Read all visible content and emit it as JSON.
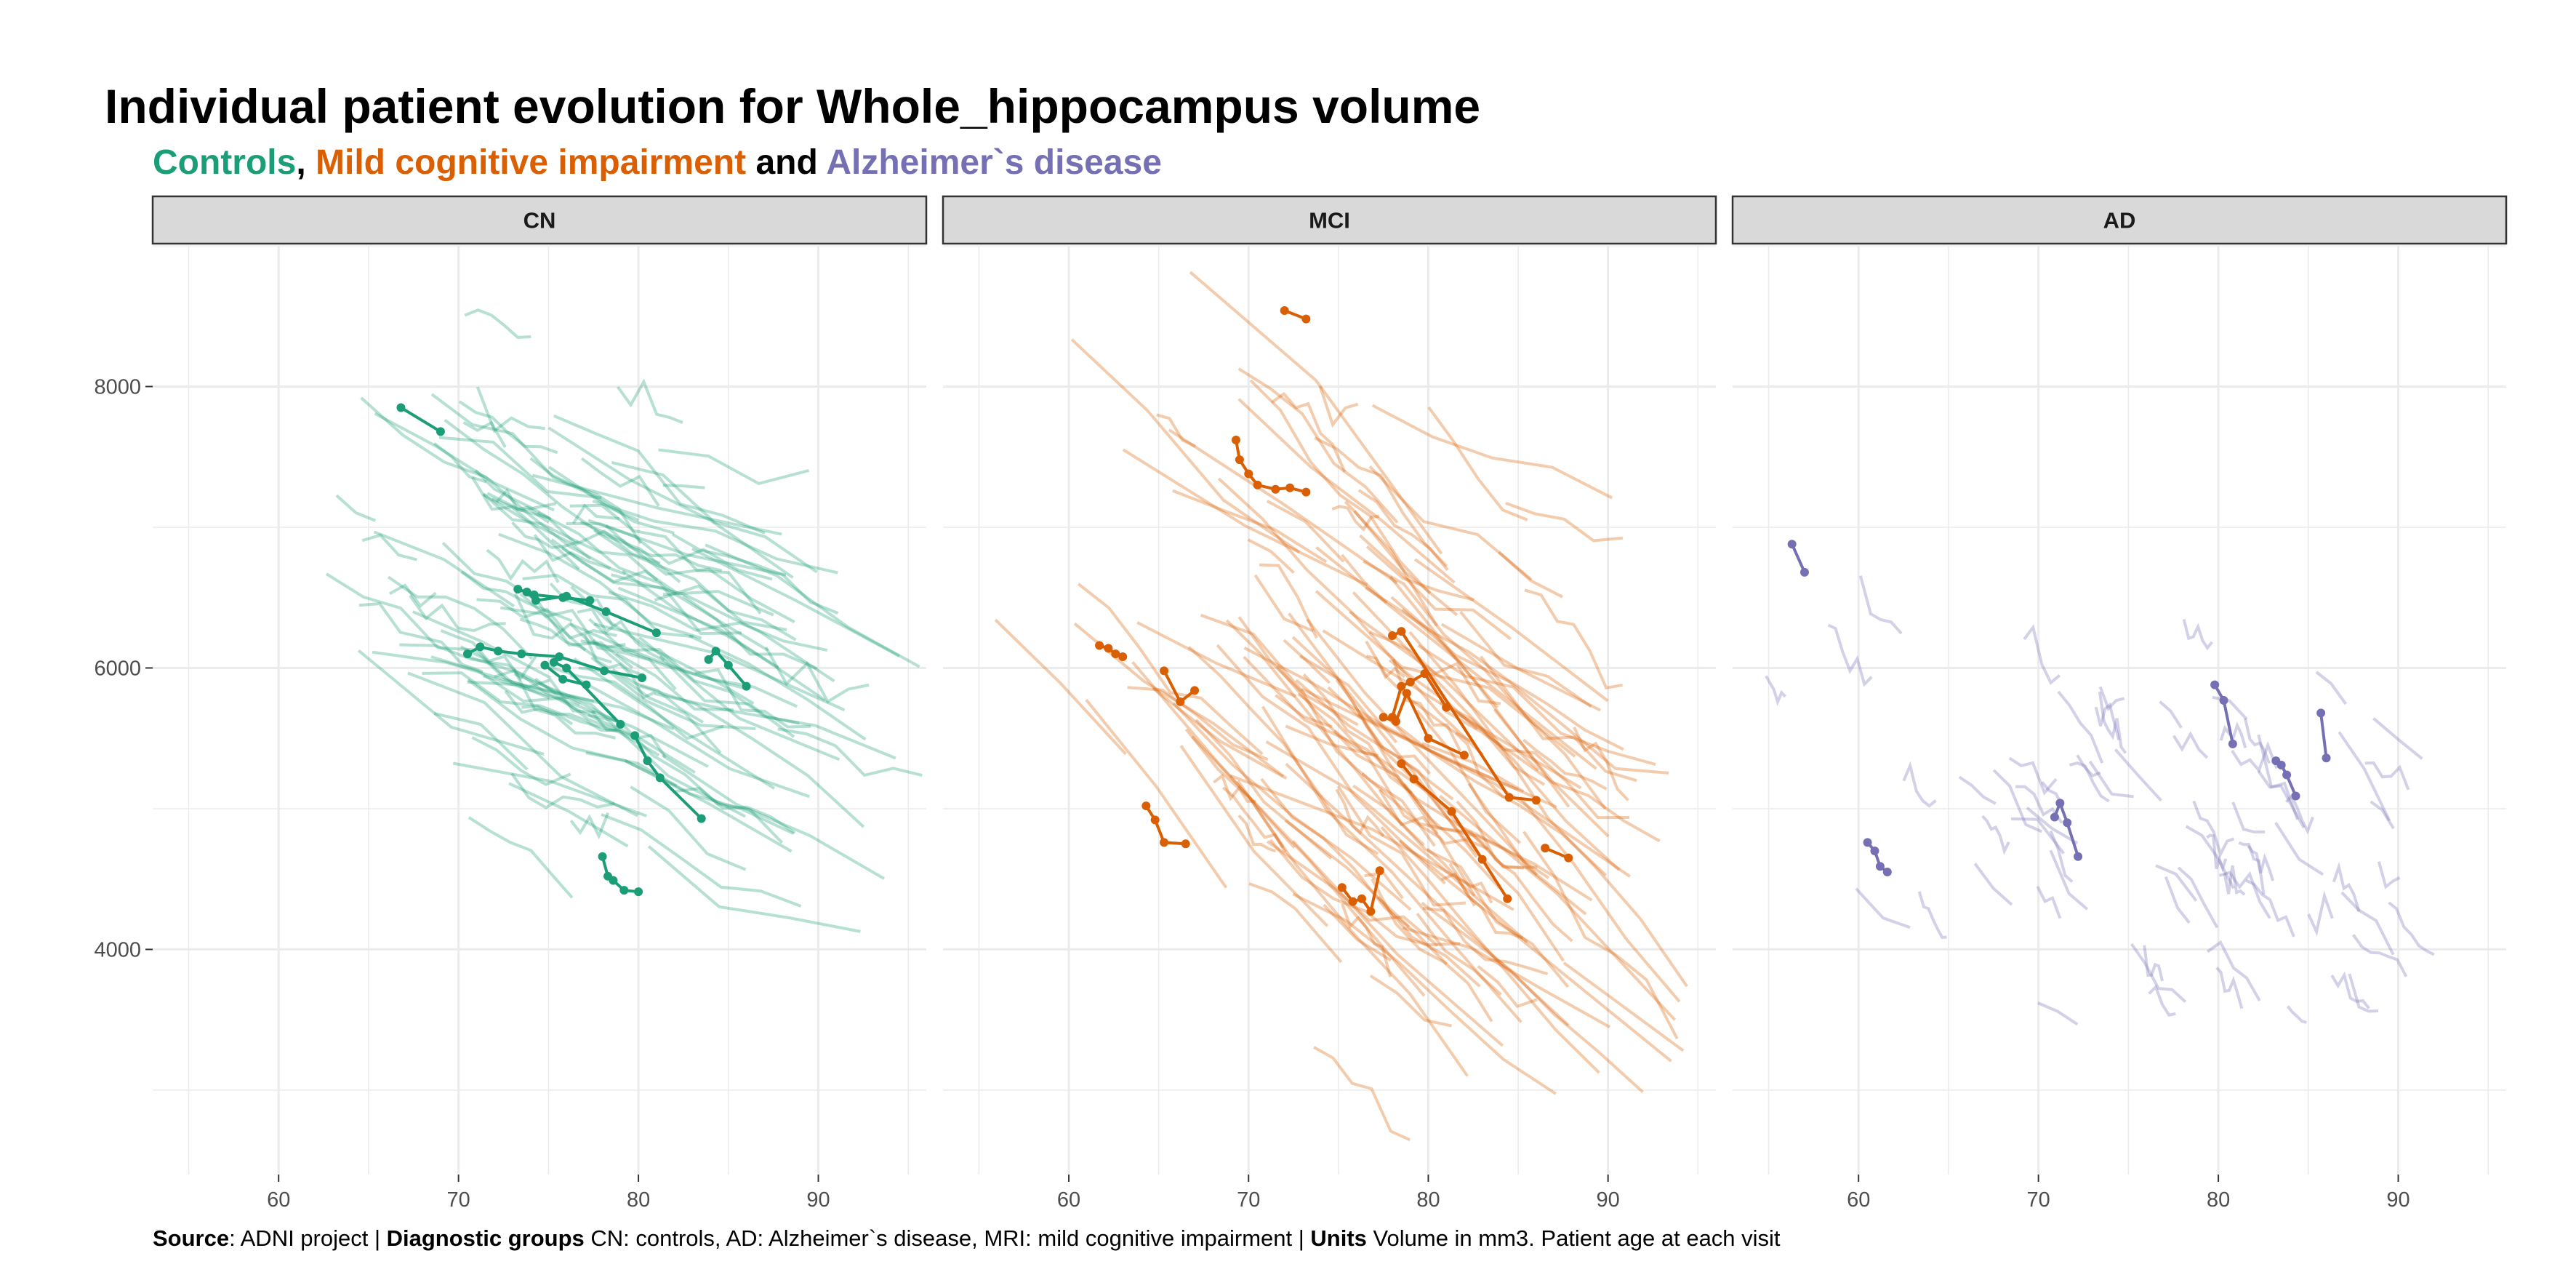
{
  "title": "Individual patient evolution for Whole_hippocampus volume",
  "subtitle": {
    "g1": "Controls",
    "sep1": ",",
    "g2": "Mild cognitive impairment",
    "sep2": "and",
    "g3": "Alzheimer`s disease"
  },
  "caption": {
    "source_label": "Source",
    "source_text": ": ADNI project | ",
    "groups_label": "Diagnostic groups",
    "groups_text": " CN: controls, AD: Alzheimer`s disease, MRI: mild cognitive impairment | ",
    "units_label": "Units",
    "units_text": " Volume in mm3. Patient age at each visit"
  },
  "colors": {
    "CN": "#1b9e77",
    "MCI": "#d95f02",
    "AD": "#7570b3",
    "strip_bg": "#d9d9d9",
    "grid": "#ebebeb"
  },
  "chart_data": {
    "type": "line",
    "facets": [
      "CN",
      "MCI",
      "AD"
    ],
    "xlim": [
      53,
      96
    ],
    "ylim": [
      2400,
      9000
    ],
    "x_ticks": [
      60,
      70,
      80,
      90
    ],
    "y_ticks": [
      4000,
      6000,
      8000
    ],
    "grid": true,
    "series": [
      {
        "facet": "CN",
        "highlighted": [
          [
            [
              66.8,
              7850
            ],
            [
              69.0,
              7680
            ]
          ],
          [
            [
              73.3,
              6560
            ],
            [
              74.2,
              6520
            ],
            [
              75.8,
              6500
            ],
            [
              77.3,
              6480
            ]
          ],
          [
            [
              73.8,
              6540
            ],
            [
              74.3,
              6480
            ],
            [
              76.0,
              6510
            ],
            [
              78.2,
              6400
            ],
            [
              81.0,
              6250
            ]
          ],
          [
            [
              70.5,
              6100
            ],
            [
              71.2,
              6150
            ],
            [
              72.2,
              6120
            ],
            [
              73.5,
              6100
            ],
            [
              75.6,
              6080
            ],
            [
              78.1,
              5980
            ],
            [
              80.2,
              5930
            ]
          ],
          [
            [
              75.3,
              6040
            ],
            [
              76.0,
              6000
            ],
            [
              79.0,
              5600
            ]
          ],
          [
            [
              74.8,
              6020
            ],
            [
              75.8,
              5920
            ],
            [
              77.1,
              5880
            ]
          ],
          [
            [
              83.9,
              6060
            ],
            [
              84.3,
              6120
            ],
            [
              85.0,
              6020
            ],
            [
              86.0,
              5870
            ]
          ],
          [
            [
              79.8,
              5520
            ],
            [
              80.5,
              5340
            ],
            [
              81.2,
              5220
            ],
            [
              83.5,
              4930
            ]
          ],
          [
            [
              78.0,
              4660
            ],
            [
              78.3,
              4520
            ],
            [
              78.6,
              4490
            ],
            [
              79.2,
              4420
            ],
            [
              80.0,
              4410
            ]
          ]
        ],
        "background_count": 130
      },
      {
        "facet": "MCI",
        "highlighted": [
          [
            [
              72.0,
              8540
            ],
            [
              73.2,
              8480
            ]
          ],
          [
            [
              69.3,
              7620
            ],
            [
              69.5,
              7480
            ],
            [
              70.0,
              7380
            ],
            [
              70.5,
              7300
            ],
            [
              71.5,
              7270
            ],
            [
              72.3,
              7280
            ],
            [
              73.2,
              7250
            ]
          ],
          [
            [
              61.7,
              6160
            ],
            [
              62.2,
              6140
            ],
            [
              62.6,
              6100
            ],
            [
              63.0,
              6080
            ]
          ],
          [
            [
              65.3,
              5980
            ],
            [
              66.2,
              5760
            ],
            [
              67.0,
              5840
            ]
          ],
          [
            [
              78.0,
              6230
            ],
            [
              78.5,
              6260
            ],
            [
              84.5,
              5080
            ],
            [
              86.0,
              5060
            ]
          ],
          [
            [
              78.0,
              5650
            ],
            [
              78.5,
              5870
            ],
            [
              79.0,
              5900
            ],
            [
              79.8,
              5960
            ],
            [
              81.0,
              5720
            ]
          ],
          [
            [
              77.5,
              5650
            ],
            [
              78.2,
              5620
            ],
            [
              78.8,
              5820
            ],
            [
              80.0,
              5500
            ],
            [
              82.0,
              5380
            ]
          ],
          [
            [
              78.5,
              5320
            ],
            [
              79.2,
              5210
            ],
            [
              81.3,
              4980
            ],
            [
              83.0,
              4640
            ],
            [
              84.4,
              4360
            ]
          ],
          [
            [
              64.3,
              5020
            ],
            [
              64.8,
              4920
            ],
            [
              65.3,
              4760
            ],
            [
              66.5,
              4750
            ]
          ],
          [
            [
              75.2,
              4440
            ],
            [
              75.8,
              4340
            ],
            [
              76.3,
              4360
            ],
            [
              76.8,
              4270
            ],
            [
              77.3,
              4560
            ]
          ],
          [
            [
              86.5,
              4720
            ],
            [
              87.8,
              4650
            ]
          ]
        ],
        "background_count": 150
      },
      {
        "facet": "AD",
        "highlighted": [
          [
            [
              56.3,
              6880
            ],
            [
              57.0,
              6680
            ]
          ],
          [
            [
              60.5,
              4760
            ],
            [
              60.9,
              4700
            ],
            [
              61.2,
              4590
            ],
            [
              61.6,
              4550
            ]
          ],
          [
            [
              70.9,
              4940
            ],
            [
              71.2,
              5040
            ],
            [
              71.6,
              4900
            ],
            [
              72.2,
              4660
            ]
          ],
          [
            [
              79.8,
              5880
            ],
            [
              80.3,
              5770
            ],
            [
              80.8,
              5460
            ]
          ],
          [
            [
              83.2,
              5340
            ],
            [
              83.5,
              5310
            ],
            [
              83.8,
              5240
            ],
            [
              84.3,
              5090
            ]
          ],
          [
            [
              85.7,
              5680
            ],
            [
              86.0,
              5360
            ]
          ]
        ],
        "background_count": 70
      }
    ]
  }
}
